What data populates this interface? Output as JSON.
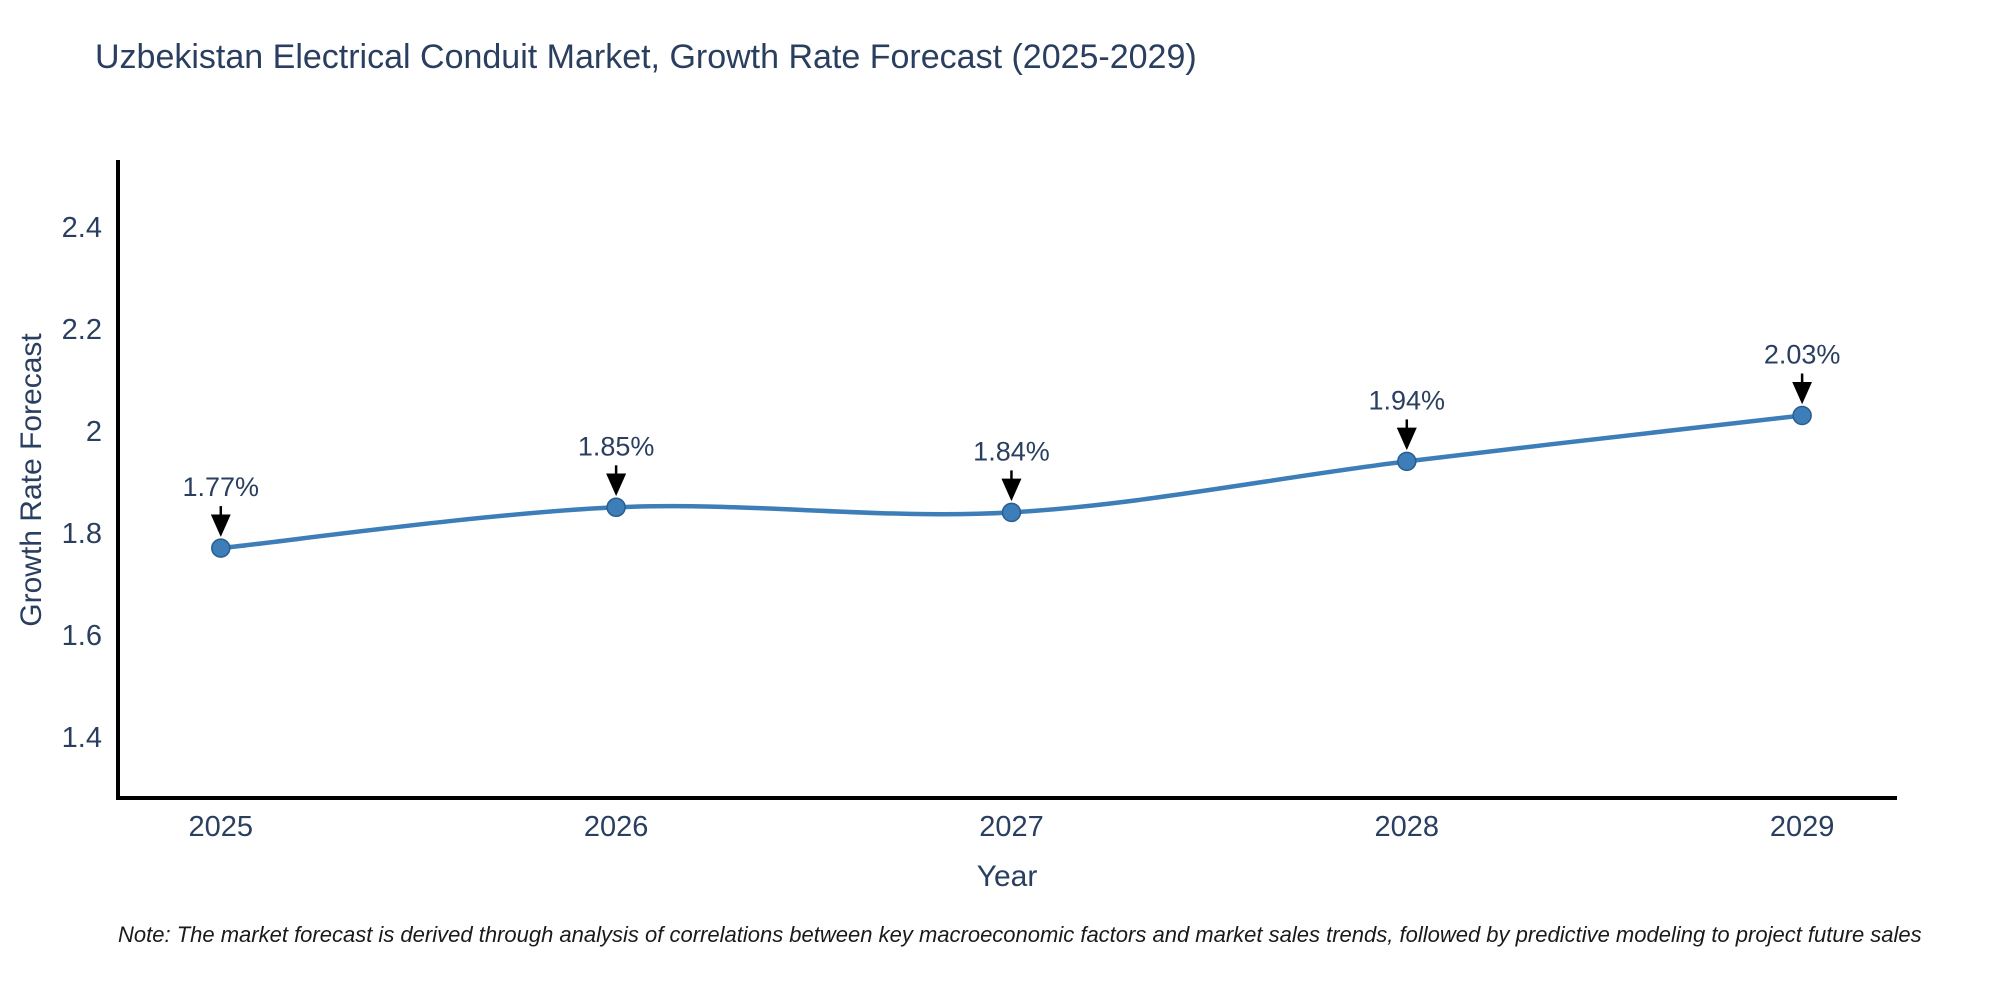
{
  "title": "Uzbekistan Electrical Conduit Market, Growth Rate Forecast (2025-2029)",
  "note": "Note: The market forecast is derived through analysis of correlations between key macroeconomic factors and market sales trends, followed by predictive modeling to project future sales",
  "chart_data": {
    "type": "line",
    "title": "Uzbekistan Electrical Conduit Market, Growth Rate Forecast (2025-2029)",
    "xlabel": "Year",
    "ylabel": "Growth Rate Forecast",
    "x": [
      2025,
      2026,
      2027,
      2028,
      2029
    ],
    "categories": [
      "2025",
      "2026",
      "2027",
      "2028",
      "2029"
    ],
    "values": [
      1.77,
      1.85,
      1.84,
      1.94,
      2.03
    ],
    "point_labels": [
      "1.77%",
      "1.85%",
      "1.84%",
      "1.94%",
      "2.03%"
    ],
    "y_ticks": [
      1.4,
      1.6,
      1.8,
      2,
      2.2,
      2.4
    ],
    "y_tick_labels": [
      "1.4",
      "1.6",
      "1.8",
      "2",
      "2.2",
      "2.4"
    ],
    "ylim": [
      1.28,
      2.531
    ],
    "xlim": [
      2024.74,
      2029.24
    ],
    "grid": false,
    "legend_position": "none",
    "line_shape": "spline",
    "colors": {
      "line": "#3d7eb8",
      "marker": "#3d7eb8",
      "marker_edge": "#2a5d8f",
      "axis": "#000000",
      "tick_text": "#2a3f5f",
      "annotation_text": "#2a3f5f",
      "arrow": "#000000",
      "background": "#ffffff"
    }
  }
}
